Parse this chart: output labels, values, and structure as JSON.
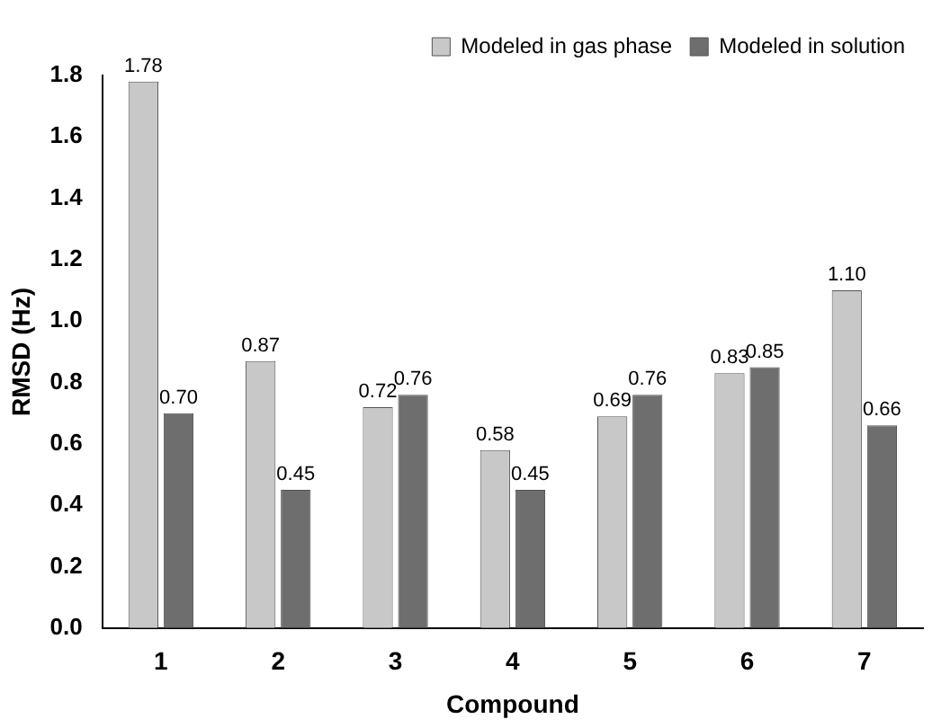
{
  "chart_data": {
    "type": "bar",
    "xlabel": "Compound",
    "ylabel": "RMSD (Hz)",
    "categories": [
      "1",
      "2",
      "3",
      "4",
      "5",
      "6",
      "7"
    ],
    "series": [
      {
        "name": "Modeled in gas phase",
        "color": "#c8c8c8",
        "values": [
          1.78,
          0.87,
          0.72,
          0.58,
          0.69,
          0.83,
          1.1
        ],
        "value_labels": [
          "1.78",
          "0.87",
          "0.72",
          "0.58",
          "0.69",
          "0.83",
          "1.10"
        ]
      },
      {
        "name": "Modeled in solution",
        "color": "#6e6e6e",
        "values": [
          0.7,
          0.45,
          0.76,
          0.45,
          0.76,
          0.85,
          0.66
        ],
        "value_labels": [
          "0.70",
          "0.45",
          "0.76",
          "0.45",
          "0.76",
          "0.85",
          "0.66"
        ]
      }
    ],
    "ylim": [
      0,
      1.8
    ],
    "yticks": [
      {
        "value": 0,
        "label": "0.0"
      },
      0.2,
      0.4,
      0.6,
      0.8,
      {
        "value": 1,
        "label": "1.0"
      },
      1.2,
      1.4,
      1.6,
      1.8
    ],
    "grid": false,
    "legend": "top right"
  }
}
